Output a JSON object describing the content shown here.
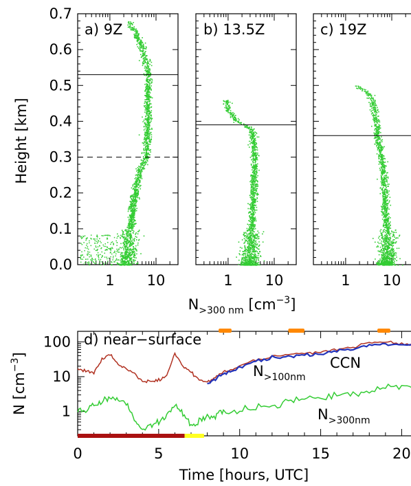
{
  "colors": {
    "points": "#33cc33",
    "n100": "#b03020",
    "ccn": "#2233bb",
    "n300": "#33cc33",
    "orange": "#ff8800",
    "red": "#aa1111",
    "yellow": "#ffff22"
  },
  "chart_data": [
    {
      "type": "scatter",
      "panel_label": "a) 9Z",
      "xscale": "log",
      "xlim": [
        0.2,
        30
      ],
      "ylim": [
        0,
        0.7
      ],
      "xticks": [
        "1",
        "10"
      ],
      "yticks": [
        "0.0",
        "0.1",
        "0.2",
        "0.3",
        "0.4",
        "0.5",
        "0.6",
        "0.7"
      ],
      "ylabel": "Height [km]",
      "hlines": [
        {
          "y": 0.53,
          "style": "solid"
        },
        {
          "y": 0.3,
          "style": "dashed"
        }
      ],
      "profile": [
        [
          0.0,
          2.0
        ],
        [
          0.03,
          2.5
        ],
        [
          0.06,
          2.6
        ],
        [
          0.09,
          2.6
        ],
        [
          0.12,
          2.9
        ],
        [
          0.16,
          3.0
        ],
        [
          0.2,
          3.5
        ],
        [
          0.25,
          4.0
        ],
        [
          0.3,
          6.0
        ],
        [
          0.35,
          6.2
        ],
        [
          0.4,
          6.5
        ],
        [
          0.45,
          6.5
        ],
        [
          0.5,
          6.7
        ],
        [
          0.55,
          6.3
        ],
        [
          0.6,
          5.0
        ],
        [
          0.65,
          3.5
        ],
        [
          0.68,
          2.5
        ]
      ]
    },
    {
      "type": "scatter",
      "panel_label": "b) 13.5Z",
      "xscale": "log",
      "xlim": [
        0.2,
        30
      ],
      "ylim": [
        0,
        0.7
      ],
      "xticks": [
        "1",
        "10"
      ],
      "hlines": [
        {
          "y": 0.39,
          "style": "solid"
        }
      ],
      "profile": [
        [
          0.0,
          2.8
        ],
        [
          0.05,
          3.0
        ],
        [
          0.1,
          3.2
        ],
        [
          0.15,
          3.3
        ],
        [
          0.2,
          3.5
        ],
        [
          0.25,
          3.6
        ],
        [
          0.3,
          3.7
        ],
        [
          0.35,
          3.5
        ],
        [
          0.38,
          3.0
        ],
        [
          0.4,
          1.6
        ],
        [
          0.43,
          1.0
        ],
        [
          0.46,
          0.9
        ]
      ]
    },
    {
      "type": "scatter",
      "panel_label": "c) 19Z",
      "xscale": "log",
      "xlim": [
        0.2,
        30
      ],
      "ylim": [
        0,
        0.7
      ],
      "xticks": [
        "1",
        "10"
      ],
      "hlines": [
        {
          "y": 0.36,
          "style": "solid"
        }
      ],
      "profile": [
        [
          0.0,
          7.5
        ],
        [
          0.05,
          7.8
        ],
        [
          0.1,
          8.0
        ],
        [
          0.15,
          7.0
        ],
        [
          0.2,
          7.0
        ],
        [
          0.25,
          6.5
        ],
        [
          0.3,
          6.0
        ],
        [
          0.35,
          5.0
        ],
        [
          0.4,
          4.5
        ],
        [
          0.45,
          4.0
        ],
        [
          0.48,
          3.0
        ],
        [
          0.5,
          1.8
        ]
      ]
    }
  ],
  "shared_xlabel": {
    "main": "N",
    "sub": ">300 nm",
    "unit_pre": " [cm",
    "unit_sup": "−3",
    "unit_post": "]"
  },
  "timeseries": {
    "type": "line",
    "panel_label": "d) near−surface",
    "xlabel": "Time [hours, UTC]",
    "ylabel_main": "N [cm",
    "ylabel_sup": "−3",
    "ylabel_post": "]",
    "yscale": "log",
    "xlim": [
      0,
      21
    ],
    "ylim": [
      0.2,
      200
    ],
    "xticks": [
      "0",
      "5",
      "10",
      "15",
      "20"
    ],
    "yticks": [
      "1",
      "10",
      "100"
    ],
    "series": [
      {
        "name": "N>100nm",
        "label_main": "N",
        "label_sub": ">100nm",
        "color": "#b03020",
        "x": [
          0,
          0.5,
          1,
          1.5,
          2,
          2.5,
          3,
          3.5,
          4,
          4.5,
          5,
          5.5,
          6,
          6.5,
          7,
          7.5,
          8,
          8.5,
          9,
          9.5,
          10,
          11,
          12,
          13,
          14,
          15,
          16,
          17,
          18,
          19,
          20,
          21
        ],
        "y": [
          16,
          15,
          13,
          30,
          45,
          22,
          18,
          12,
          7,
          7.5,
          8,
          11,
          45,
          20,
          13,
          8,
          7,
          10,
          14,
          16,
          20,
          32,
          38,
          42,
          45,
          50,
          60,
          70,
          95,
          100,
          90,
          85
        ]
      },
      {
        "name": "CCN",
        "label_main": "CCN",
        "label_sub": "",
        "color": "#2233bb",
        "x": [
          8,
          8.5,
          9,
          9.5,
          10,
          11,
          12,
          13,
          14,
          15,
          16,
          17,
          18,
          19,
          20,
          21
        ],
        "y": [
          6,
          9,
          12,
          14,
          18,
          28,
          34,
          38,
          42,
          45,
          55,
          60,
          80,
          85,
          80,
          78
        ]
      },
      {
        "name": "N>300nm",
        "label_main": "N",
        "label_sub": ">300nm",
        "color": "#33cc33",
        "x": [
          0,
          0.5,
          1,
          1.5,
          2,
          2.5,
          3,
          3.5,
          4,
          4.5,
          5,
          5.5,
          6,
          6.5,
          7,
          7.5,
          8,
          8.5,
          9,
          10,
          11,
          12,
          13,
          14,
          15,
          16,
          17,
          18,
          19,
          20,
          21
        ],
        "y": [
          1.0,
          1.1,
          1.5,
          2.0,
          2.5,
          2.2,
          1.8,
          0.6,
          0.3,
          0.4,
          0.5,
          0.7,
          1.6,
          0.9,
          0.4,
          0.5,
          0.7,
          0.8,
          0.9,
          1.0,
          1.2,
          1.5,
          1.9,
          2.2,
          2.5,
          3.0,
          3.3,
          3.8,
          4.5,
          5.0,
          5.2
        ]
      }
    ],
    "orange_segments": [
      [
        8.7,
        9.5
      ],
      [
        13.0,
        14.0
      ],
      [
        18.5,
        19.3
      ]
    ],
    "bottom_bars": [
      {
        "x0": 0,
        "x1": 6.6,
        "color": "#aa1111"
      },
      {
        "x0": 6.6,
        "x1": 7.8,
        "color": "#ffff22"
      }
    ]
  }
}
